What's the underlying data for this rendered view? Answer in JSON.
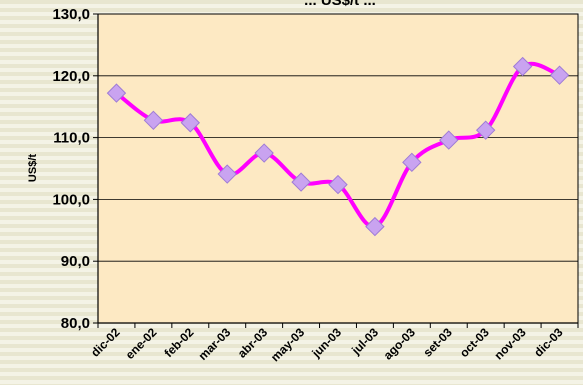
{
  "chart_data": {
    "type": "line",
    "title": "",
    "title_partial": "... US$/t ...",
    "xlabel": "",
    "ylabel": "US$/t",
    "categories": [
      "dic-02",
      "ene-02",
      "feb-02",
      "mar-03",
      "abr-03",
      "may-03",
      "jun-03",
      "jul-03",
      "ago-03",
      "set-03",
      "oct-03",
      "nov-03",
      "dic-03"
    ],
    "series": [
      {
        "name": "",
        "values": [
          117.2,
          112.8,
          112.4,
          104.1,
          107.5,
          102.8,
          102.4,
          95.6,
          106.0,
          109.6,
          111.2,
          121.5,
          120.1
        ]
      }
    ],
    "ylim": [
      80,
      130
    ],
    "yticks": [
      "80,0",
      "90,0",
      "100,0",
      "110,0",
      "120,0",
      "130,0"
    ],
    "grid": true,
    "legend": "none",
    "colors": {
      "background_stripes": "#E8E6D0",
      "background_base": "#F4F3E6",
      "plot_area": "#FDE9C3",
      "line": "#FF00FF",
      "marker": "#C9A3F0",
      "marker_edge": "#9E7BD6",
      "gridline": "#000000"
    }
  }
}
